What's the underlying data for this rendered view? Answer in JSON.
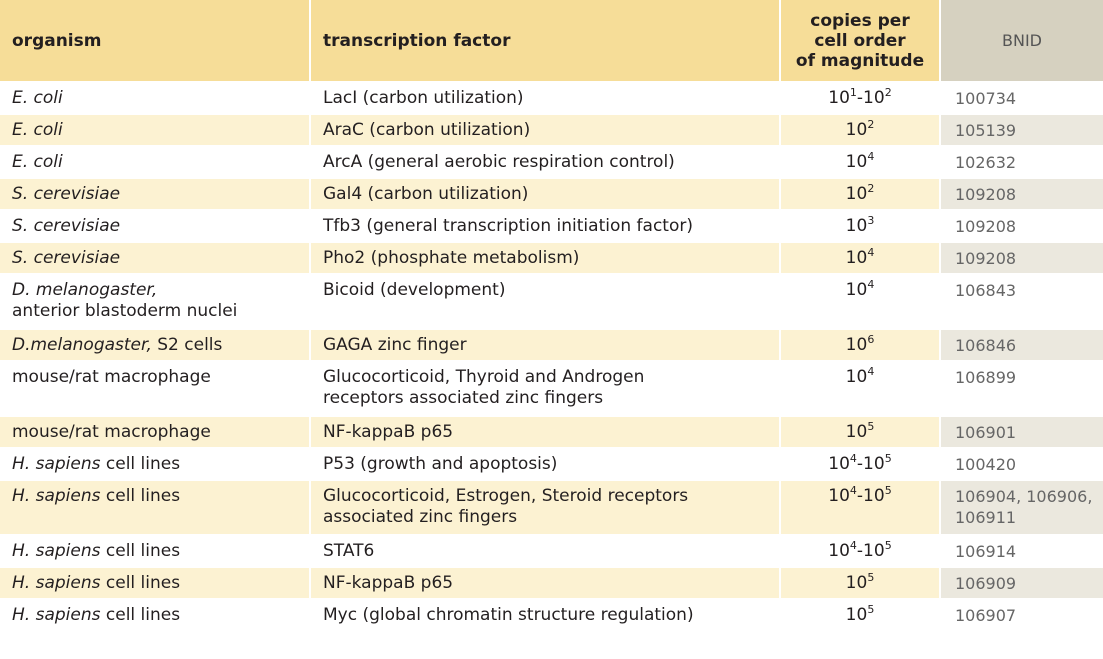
{
  "headers": {
    "organism": "organism",
    "factor": "transcription factor",
    "copies_line1": "copies per",
    "copies_line2": "cell order",
    "copies_line3": "of magnitude",
    "bnid": "BNID"
  },
  "rows": [
    {
      "org_it": "E. coli",
      "org_rest": "",
      "org_line2": "",
      "factor1": "LacI (carbon utilization)",
      "factor2": "",
      "e1": "1",
      "mid": "-10",
      "e2": "2",
      "bnid1": "100734",
      "bnid2": ""
    },
    {
      "org_it": "E. coli",
      "org_rest": "",
      "org_line2": "",
      "factor1": "AraC (carbon utilization)",
      "factor2": "",
      "e1": "2",
      "mid": "",
      "e2": "",
      "bnid1": "105139",
      "bnid2": ""
    },
    {
      "org_it": "E. coli",
      "org_rest": "",
      "org_line2": "",
      "factor1": "ArcA (general aerobic respiration control)",
      "factor2": "",
      "e1": "4",
      "mid": "",
      "e2": "",
      "bnid1": "102632",
      "bnid2": ""
    },
    {
      "org_it": "S. cerevisiae",
      "org_rest": "",
      "org_line2": "",
      "factor1": "Gal4 (carbon utilization)",
      "factor2": "",
      "e1": "2",
      "mid": "",
      "e2": "",
      "bnid1": "109208",
      "bnid2": ""
    },
    {
      "org_it": "S. cerevisiae",
      "org_rest": "",
      "org_line2": "",
      "factor1": "Tfb3 (general transcription initiation factor)",
      "factor2": "",
      "e1": "3",
      "mid": "",
      "e2": "",
      "bnid1": "109208",
      "bnid2": ""
    },
    {
      "org_it": "S. cerevisiae",
      "org_rest": "",
      "org_line2": "",
      "factor1": "Pho2 (phosphate metabolism)",
      "factor2": "",
      "e1": "4",
      "mid": "",
      "e2": "",
      "bnid1": "109208",
      "bnid2": ""
    },
    {
      "org_it": "D. melanogaster,",
      "org_rest": "",
      "org_line2": "anterior blastoderm nuclei",
      "factor1": "Bicoid (development)",
      "factor2": "",
      "e1": "4",
      "mid": "",
      "e2": "",
      "bnid1": "106843",
      "bnid2": ""
    },
    {
      "org_it": "D.melanogaster,",
      "org_rest": " S2 cells",
      "org_line2": "",
      "factor1": "GAGA zinc finger",
      "factor2": "",
      "e1": "6",
      "mid": "",
      "e2": "",
      "bnid1": "106846",
      "bnid2": ""
    },
    {
      "org_it": "",
      "org_rest": "mouse/rat macrophage",
      "org_line2": "",
      "factor1": "Glucocorticoid, Thyroid and Androgen",
      "factor2": "receptors associated zinc fingers",
      "e1": "4",
      "mid": "",
      "e2": "",
      "bnid1": "106899",
      "bnid2": ""
    },
    {
      "org_it": "",
      "org_rest": "mouse/rat macrophage",
      "org_line2": "",
      "factor1": "NF-kappaB p65",
      "factor2": "",
      "e1": "5",
      "mid": "",
      "e2": "",
      "bnid1": "106901",
      "bnid2": ""
    },
    {
      "org_it": "H. sapiens",
      "org_rest": " cell lines",
      "org_line2": "",
      "factor1": "P53 (growth and apoptosis)",
      "factor2": "",
      "e1": "4",
      "mid": "-10",
      "e2": "5",
      "bnid1": "100420",
      "bnid2": ""
    },
    {
      "org_it": "H. sapiens",
      "org_rest": " cell lines",
      "org_line2": "",
      "factor1": "Glucocorticoid, Estrogen, Steroid receptors",
      "factor2": "associated zinc fingers",
      "e1": "4",
      "mid": "-10",
      "e2": "5",
      "bnid1": "106904, 106906,",
      "bnid2": "106911"
    },
    {
      "org_it": "H. sapiens",
      "org_rest": " cell lines",
      "org_line2": "",
      "factor1": "STAT6",
      "factor2": "",
      "e1": "4",
      "mid": "-10",
      "e2": "5",
      "bnid1": "106914",
      "bnid2": ""
    },
    {
      "org_it": "H. sapiens",
      "org_rest": " cell lines",
      "org_line2": "",
      "factor1": "NF-kappaB p65",
      "factor2": "",
      "e1": "5",
      "mid": "",
      "e2": "",
      "bnid1": "106909",
      "bnid2": ""
    },
    {
      "org_it": "H. sapiens",
      "org_rest": " cell lines",
      "org_line2": "",
      "factor1": "Myc (global chromatin structure regulation)",
      "factor2": "",
      "e1": "5",
      "mid": "",
      "e2": "",
      "bnid1": "106907",
      "bnid2": ""
    }
  ]
}
